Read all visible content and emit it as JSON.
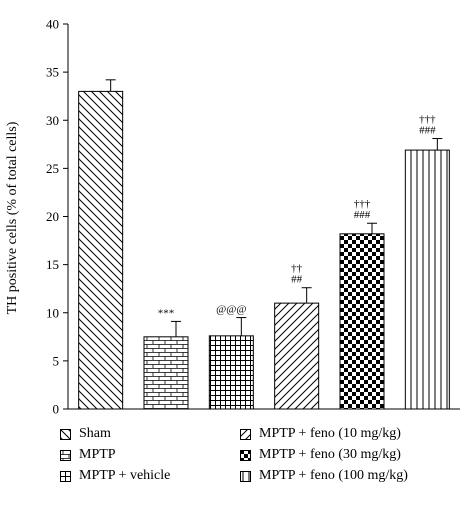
{
  "chart_data": {
    "type": "bar",
    "title": "",
    "xlabel": "",
    "ylabel": "TH positive cells (% of total cells)",
    "ylim": [
      0,
      40
    ],
    "yticks": [
      0,
      5,
      10,
      15,
      20,
      25,
      30,
      35,
      40
    ],
    "grid": false,
    "legend_position": "bottom",
    "categories": [
      "Sham",
      "MPTP",
      "MPTP + vehicle",
      "MPTP + feno (10 mg/kg)",
      "MPTP + feno (30 mg/kg)",
      "MPTP + feno (100 mg/kg)"
    ],
    "values": [
      33.0,
      7.5,
      7.6,
      11.0,
      18.2,
      26.9
    ],
    "errors": [
      1.2,
      1.6,
      1.9,
      1.6,
      1.1,
      1.2
    ],
    "patterns": [
      "diagonal-back",
      "brick",
      "grid",
      "diagonal-forward",
      "checker",
      "vertical"
    ],
    "annotations": [
      [],
      [
        "***"
      ],
      [
        "@@@"
      ],
      [
        "††",
        "##"
      ],
      [
        "†††",
        "###"
      ],
      [
        "†††",
        "###"
      ]
    ]
  },
  "legend": {
    "items": [
      {
        "label": "Sham",
        "pattern": "diagonal-back"
      },
      {
        "label": "MPTP",
        "pattern": "brick"
      },
      {
        "label": "MPTP + vehicle",
        "pattern": "grid"
      },
      {
        "label": "MPTP + feno (10 mg/kg)",
        "pattern": "diagonal-forward"
      },
      {
        "label": "MPTP + feno (30 mg/kg)",
        "pattern": "checker"
      },
      {
        "label": "MPTP + feno (100 mg/kg)",
        "pattern": "vertical"
      }
    ]
  }
}
